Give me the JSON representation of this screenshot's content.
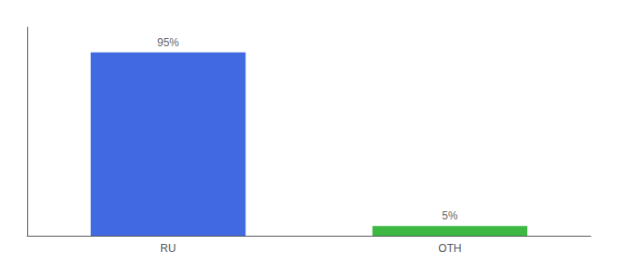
{
  "chart_data": {
    "type": "bar",
    "categories": [
      "RU",
      "OTH"
    ],
    "values": [
      95,
      5
    ],
    "value_labels": [
      "95%",
      "5%"
    ],
    "colors": [
      "#4169e1",
      "#3cb843"
    ],
    "ylim": [
      0,
      108
    ],
    "grid": false,
    "data_labels": true,
    "tick_labels": "x"
  }
}
